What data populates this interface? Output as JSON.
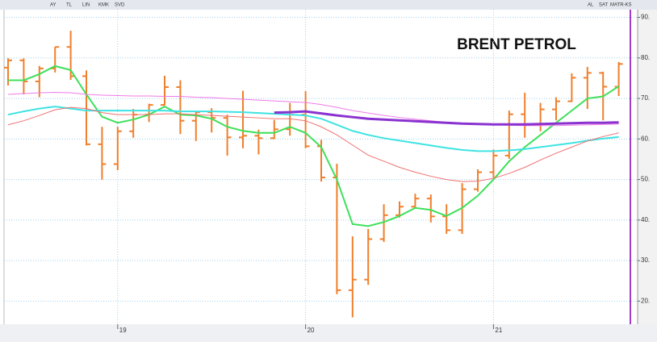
{
  "toolbar": {
    "items": [
      "AY",
      "TL",
      "LIN",
      "KMK",
      "SVD"
    ],
    "right_items": [
      "AL",
      "SAT",
      "MATR-KS"
    ]
  },
  "chart_data": {
    "type": "ohlc",
    "title": "BRENT PETROL",
    "color": "#f07f2b",
    "categories": [
      null,
      null,
      null,
      null,
      null,
      null,
      null,
      "19",
      null,
      null,
      null,
      null,
      null,
      null,
      null,
      null,
      null,
      null,
      null,
      "20",
      null,
      null,
      null,
      null,
      null,
      null,
      null,
      null,
      null,
      null,
      null,
      "21",
      null,
      null,
      null,
      null,
      null,
      null,
      null,
      null
    ],
    "open": [
      77.6,
      79.4,
      74.2,
      77.4,
      82.7,
      75.5,
      58.7,
      53.8,
      61.9,
      66.0,
      68.4,
      72.8,
      64.5,
      66.6,
      65.2,
      60.4,
      60.8,
      60.2,
      62.4,
      66.0,
      58.2,
      50.5,
      22.7,
      25.3,
      35.3,
      41.2,
      43.3,
      45.3,
      40.9,
      37.5,
      47.6,
      51.8,
      55.9,
      66.1,
      63.5,
      67.3,
      69.3,
      75.1,
      76.3,
      72.9
    ],
    "high": [
      79.9,
      79.9,
      78.0,
      82.7,
      86.7,
      76.9,
      63.0,
      63.0,
      67.4,
      68.7,
      75.6,
      74.5,
      66.8,
      67.6,
      66.0,
      71.9,
      62.3,
      64.7,
      68.9,
      71.8,
      59.8,
      53.9,
      36.0,
      37.8,
      43.9,
      44.6,
      46.5,
      46.3,
      43.9,
      49.1,
      52.5,
      57.4,
      67.0,
      71.4,
      68.9,
      70.3,
      76.2,
      77.8,
      76.6,
      79.0
    ],
    "low": [
      73.2,
      71.0,
      70.3,
      76.4,
      74.6,
      58.4,
      50.0,
      52.3,
      60.3,
      64.2,
      68.3,
      61.2,
      59.5,
      61.6,
      55.9,
      57.7,
      56.2,
      60.0,
      60.8,
      57.7,
      49.5,
      21.7,
      16.0,
      24.0,
      34.6,
      40.6,
      42.9,
      39.4,
      36.6,
      36.6,
      47.0,
      50.4,
      55.1,
      60.3,
      61.9,
      64.6,
      69.1,
      67.4,
      64.6,
      70.6
    ],
    "close": [
      79.4,
      74.2,
      77.4,
      82.7,
      75.5,
      58.7,
      53.8,
      61.9,
      66.0,
      68.4,
      72.8,
      64.5,
      66.6,
      65.2,
      60.4,
      60.8,
      60.2,
      62.4,
      66.0,
      58.2,
      50.5,
      22.7,
      25.3,
      35.3,
      41.2,
      43.3,
      45.3,
      40.9,
      37.5,
      47.6,
      51.8,
      55.9,
      66.1,
      63.5,
      67.3,
      69.3,
      75.1,
      76.3,
      72.9,
      78.5
    ],
    "series": [
      {
        "color": "#3ee05a",
        "width": 2,
        "values": [
          74.5,
          74.5,
          76,
          78,
          77,
          71,
          65.5,
          64,
          64.8,
          66,
          68,
          66,
          65.8,
          65,
          63,
          62,
          61.5,
          61.5,
          63,
          61.5,
          58,
          50,
          39,
          38.5,
          39.5,
          41,
          43,
          42.5,
          41,
          43,
          46,
          50,
          54.5,
          58,
          61,
          64,
          67,
          70,
          70.5,
          73
        ]
      },
      {
        "color": "#3fe3e3",
        "width": 2,
        "values": [
          66,
          66.8,
          67.5,
          68,
          67.5,
          67,
          67,
          67,
          67,
          67,
          67,
          66.8,
          66.8,
          66.8,
          66.7,
          66.6,
          66.4,
          66.2,
          66,
          65.8,
          65,
          63.5,
          62,
          61,
          60.2,
          59.6,
          59,
          58.4,
          57.8,
          57.3,
          57,
          57,
          57.2,
          57.5,
          58,
          58.5,
          59,
          59.6,
          60.1,
          60.5
        ]
      },
      {
        "color": "#f07ae8",
        "width": 1,
        "values": [
          71,
          71.2,
          71.4,
          71.5,
          71.4,
          71,
          70.8,
          70.7,
          70.6,
          70.6,
          70.5,
          70.5,
          70.3,
          70.2,
          70,
          69.8,
          69.6,
          69.4,
          69.2,
          69,
          68.5,
          67.8,
          67,
          66.4,
          65.8,
          65.3,
          64.9,
          64.5,
          64.1,
          63.8,
          63.6,
          63.5,
          63.4,
          63.3,
          63.3,
          63.3,
          63.4,
          63.5,
          63.6,
          63.7
        ]
      },
      {
        "color": "#f07070",
        "width": 1,
        "values": [
          63.5,
          64.5,
          65.8,
          67.2,
          67.8,
          67.5,
          66.5,
          66,
          66,
          66,
          66.2,
          66.2,
          66,
          65.8,
          65.6,
          65.4,
          65.2,
          65,
          65,
          64.5,
          63,
          61,
          58.5,
          56,
          54.5,
          53,
          51.8,
          50.8,
          50,
          49.5,
          49.6,
          50.3,
          51.5,
          53,
          54.8,
          56.5,
          58,
          59.5,
          60.6,
          61.5
        ]
      },
      {
        "color": "#8a32d0",
        "width": 3,
        "values": [
          null,
          null,
          null,
          null,
          null,
          null,
          null,
          null,
          null,
          null,
          null,
          null,
          null,
          null,
          null,
          null,
          null,
          66.5,
          66.6,
          66.8,
          66.3,
          65.8,
          65.4,
          65,
          64.8,
          64.6,
          64.4,
          64.2,
          64,
          63.8,
          63.7,
          63.6,
          63.6,
          63.6,
          63.7,
          63.8,
          63.9,
          64,
          64,
          64.1
        ]
      }
    ],
    "ylim": [
      14.3,
      91.9
    ],
    "yticks": [
      {
        "value": 20,
        "label": "20."
      },
      {
        "value": 30,
        "label": "30."
      },
      {
        "value": 40,
        "label": "40."
      },
      {
        "value": 50,
        "label": "50."
      },
      {
        "value": 60,
        "label": "60."
      },
      {
        "value": 70,
        "label": "70."
      },
      {
        "value": 80,
        "label": "80."
      },
      {
        "value": 90,
        "label": "90."
      }
    ],
    "grid": true
  }
}
